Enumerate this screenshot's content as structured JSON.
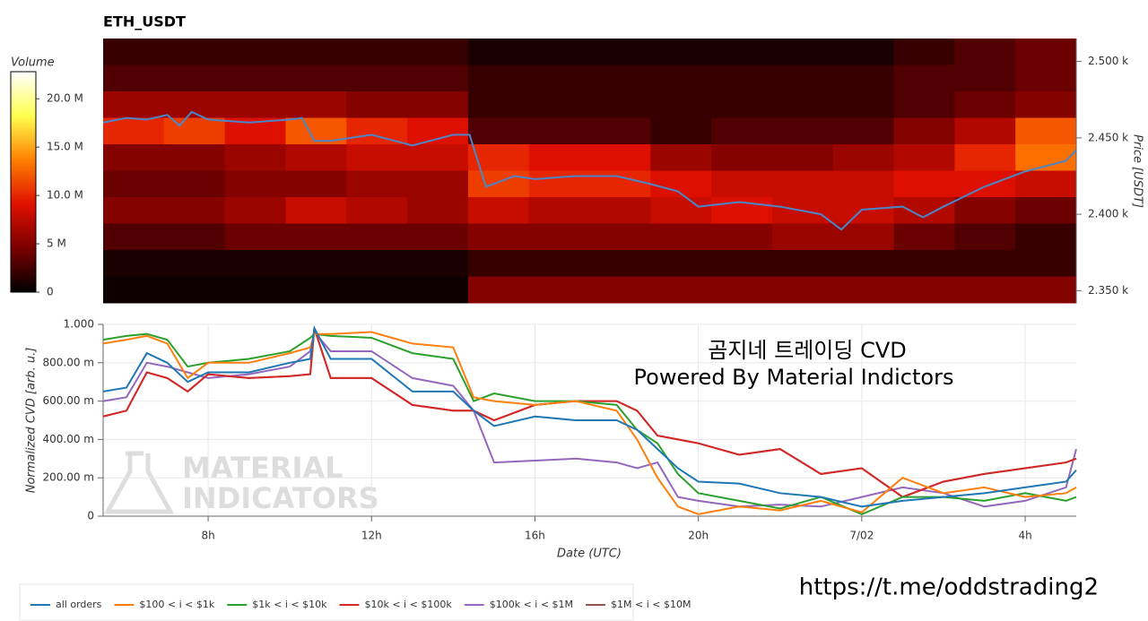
{
  "chart_data": [
    {
      "type": "heatmap",
      "title": "ETH_USDT",
      "colorbar_label": "Volume",
      "y_label": "Price [USDT]",
      "xlim": [
        5.43,
        29.25
      ],
      "ylim": [
        2342,
        2515
      ],
      "yticks": [
        {
          "value": 2350,
          "label": "2.350 k"
        },
        {
          "value": 2400,
          "label": "2.400 k"
        },
        {
          "value": 2450,
          "label": "2.450 k"
        },
        {
          "value": 2500,
          "label": "2.500 k"
        }
      ],
      "zlim": [
        0,
        22800000
      ],
      "zticks": [
        0,
        {
          "value": 5000000,
          "label": "5 M"
        },
        {
          "value": 10000000,
          "label": "10.0 M"
        },
        {
          "value": 15000000,
          "label": "15.0 M"
        },
        {
          "value": 20000000,
          "label": "20.0 M"
        }
      ],
      "colorscale": [
        "#000000",
        "#7a0000",
        "#e01000",
        "#ff8000",
        "#ffff50",
        "#ffffff"
      ],
      "z": [
        [
          2000000.0,
          2000000.0,
          2000000.0,
          2000000.0,
          2000000.0,
          2000000.0,
          1000000.0,
          1000000.0,
          1000000.0,
          1000000.0,
          1000000.0,
          1000000.0,
          1000000.0,
          2000000.0,
          3000000.0,
          4000000.0
        ],
        [
          3000000.0,
          3000000.0,
          3000000.0,
          3000000.0,
          3000000.0,
          3000000.0,
          2000000.0,
          2000000.0,
          2000000.0,
          2000000.0,
          2000000.0,
          2000000.0,
          2000000.0,
          3000000.0,
          3000000.0,
          4000000.0
        ],
        [
          6000000.0,
          6000000.0,
          6000000.0,
          6000000.0,
          5000000.0,
          5000000.0,
          2000000.0,
          2000000.0,
          2000000.0,
          2000000.0,
          2000000.0,
          2000000.0,
          2000000.0,
          3000000.0,
          4000000.0,
          5000000.0
        ],
        [
          10000000.0,
          11000000.0,
          9000000.0,
          12000000.0,
          10000000.0,
          9000000.0,
          3000000.0,
          3000000.0,
          3000000.0,
          2000000.0,
          3000000.0,
          3000000.0,
          3000000.0,
          5000000.0,
          7000000.0,
          12000000.0
        ],
        [
          5000000.0,
          5000000.0,
          6000000.0,
          7000000.0,
          8000000.0,
          8000000.0,
          10000000.0,
          9000000.0,
          9000000.0,
          6000000.0,
          5000000.0,
          5000000.0,
          6000000.0,
          7000000.0,
          10000000.0,
          13000000.0
        ],
        [
          4000000.0,
          4000000.0,
          5000000.0,
          5000000.0,
          6000000.0,
          6000000.0,
          11000000.0,
          10000000.0,
          10000000.0,
          9000000.0,
          8000000.0,
          8000000.0,
          8000000.0,
          9000000.0,
          9000000.0,
          8000000.0
        ],
        [
          5000000.0,
          5000000.0,
          6000000.0,
          8000000.0,
          7000000.0,
          6000000.0,
          8000000.0,
          7000000.0,
          7000000.0,
          8000000.0,
          9000000.0,
          8000000.0,
          8000000.0,
          7000000.0,
          5000000.0,
          4000000.0
        ],
        [
          3000000.0,
          3000000.0,
          4000000.0,
          4000000.0,
          4000000.0,
          4000000.0,
          5000000.0,
          5000000.0,
          5000000.0,
          5000000.0,
          5000000.0,
          6000000.0,
          6000000.0,
          4000000.0,
          3000000.0,
          2000000.0
        ],
        [
          1000000.0,
          1000000.0,
          1000000.0,
          1000000.0,
          1000000.0,
          1000000.0,
          2000000.0,
          2000000.0,
          2000000.0,
          2000000.0,
          2000000.0,
          2000000.0,
          2000000.0,
          2000000.0,
          2000000.0,
          2000000.0
        ],
        [
          500000.0,
          500000.0,
          500000.0,
          500000.0,
          500000.0,
          500000.0,
          5000000.0,
          5000000.0,
          5000000.0,
          5000000.0,
          5000000.0,
          5000000.0,
          5000000.0,
          5000000.0,
          5000000.0,
          5000000.0
        ]
      ],
      "line_color": "#4a86c8",
      "x": [
        5.43,
        6,
        6.5,
        7,
        7.3,
        7.6,
        8,
        9,
        10,
        10.3,
        10.6,
        11,
        12,
        13,
        14,
        14.4,
        14.8,
        15.5,
        16,
        17,
        18,
        18.8,
        19.5,
        20,
        21,
        22,
        23,
        23.5,
        24,
        25,
        25.5,
        26,
        27,
        28,
        29,
        29.25
      ],
      "price": [
        2460,
        2463,
        2462,
        2465,
        2458,
        2467,
        2462,
        2460,
        2462,
        2463,
        2448,
        2448,
        2452,
        2445,
        2452,
        2452,
        2418,
        2425,
        2423,
        2425,
        2425,
        2420,
        2415,
        2405,
        2408,
        2405,
        2400,
        2390,
        2403,
        2405,
        2398,
        2405,
        2418,
        2428,
        2435,
        2442
      ]
    },
    {
      "type": "line",
      "x_label": "Date (UTC)",
      "y_label": "Normalized CVD [arb. u.]",
      "annotations": [
        "곰지네 트레이딩 CVD",
        "Powered By Material Indictors"
      ],
      "watermark": [
        "MATERIAL",
        "INDICATORS"
      ],
      "xlim": [
        5.43,
        29.25
      ],
      "ylim": [
        0,
        1
      ],
      "xticks": [
        {
          "value": 8,
          "label": "8h"
        },
        {
          "value": 12,
          "label": "12h"
        },
        {
          "value": 16,
          "label": "16h"
        },
        {
          "value": 20,
          "label": "20h"
        },
        {
          "value": 24,
          "label": "7/02"
        },
        {
          "value": 28,
          "label": "4h"
        }
      ],
      "yticks": [
        0,
        {
          "value": 0.2,
          "label": "200.00 m"
        },
        {
          "value": 0.4,
          "label": "400.00 m"
        },
        {
          "value": 0.6,
          "label": "600.00 m"
        },
        {
          "value": 0.8,
          "label": "800.00 m"
        },
        {
          "value": 1,
          "label": "1.000"
        }
      ],
      "grid": true,
      "legend": "bottom-left",
      "x": [
        5.43,
        6,
        6.5,
        7,
        7.5,
        8,
        9,
        10,
        10.5,
        10.6,
        11,
        12,
        13,
        14,
        14.5,
        15,
        16,
        17,
        18,
        18.5,
        19,
        19.5,
        20,
        21,
        22,
        23,
        24,
        25,
        26,
        27,
        28,
        29,
        29.25
      ],
      "series": [
        {
          "name": "all orders",
          "color": "#1f77b4",
          "values": [
            0.65,
            0.67,
            0.85,
            0.8,
            0.7,
            0.75,
            0.75,
            0.8,
            0.82,
            0.98,
            0.82,
            0.82,
            0.65,
            0.65,
            0.55,
            0.47,
            0.52,
            0.5,
            0.5,
            0.45,
            0.35,
            0.25,
            0.18,
            0.17,
            0.12,
            0.1,
            0.05,
            0.08,
            0.1,
            0.12,
            0.15,
            0.18,
            0.24
          ]
        },
        {
          "name": "$100 < i < $1k",
          "color": "#ff7f0e",
          "values": [
            0.9,
            0.92,
            0.94,
            0.9,
            0.72,
            0.8,
            0.8,
            0.85,
            0.88,
            0.95,
            0.95,
            0.96,
            0.9,
            0.88,
            0.62,
            0.6,
            0.58,
            0.6,
            0.55,
            0.4,
            0.2,
            0.05,
            0.01,
            0.05,
            0.03,
            0.08,
            0.02,
            0.2,
            0.12,
            0.15,
            0.1,
            0.12,
            0.15
          ]
        },
        {
          "name": "$1k < i < $10k",
          "color": "#2ca02c",
          "values": [
            0.92,
            0.94,
            0.95,
            0.92,
            0.78,
            0.8,
            0.82,
            0.86,
            0.93,
            0.95,
            0.94,
            0.93,
            0.85,
            0.82,
            0.6,
            0.64,
            0.6,
            0.6,
            0.58,
            0.45,
            0.38,
            0.22,
            0.12,
            0.08,
            0.04,
            0.1,
            0.01,
            0.1,
            0.1,
            0.08,
            0.12,
            0.08,
            0.1
          ]
        },
        {
          "name": "$10k < i < $100k",
          "color": "#d62728",
          "values": [
            0.52,
            0.55,
            0.75,
            0.72,
            0.65,
            0.74,
            0.72,
            0.73,
            0.74,
            0.98,
            0.72,
            0.72,
            0.58,
            0.55,
            0.55,
            0.5,
            0.58,
            0.6,
            0.6,
            0.55,
            0.42,
            0.4,
            0.38,
            0.32,
            0.35,
            0.22,
            0.25,
            0.1,
            0.18,
            0.22,
            0.25,
            0.28,
            0.3
          ]
        },
        {
          "name": "$100k < i < $1M",
          "color": "#9467bd",
          "values": [
            0.6,
            0.62,
            0.8,
            0.78,
            0.75,
            0.72,
            0.74,
            0.78,
            0.86,
            0.96,
            0.86,
            0.86,
            0.72,
            0.68,
            0.55,
            0.28,
            0.29,
            0.3,
            0.28,
            0.25,
            0.28,
            0.1,
            0.08,
            0.05,
            0.06,
            0.05,
            0.1,
            0.15,
            0.12,
            0.05,
            0.08,
            0.15,
            0.35
          ]
        },
        {
          "name": "$1M < i < $10M",
          "color": "#8c564b",
          "values": [
            0.52,
            0.55,
            0.75,
            0.72,
            0.65,
            0.74,
            0.72,
            0.73,
            0.74,
            0.98,
            0.72,
            0.72,
            0.58,
            0.55,
            0.55,
            0.5,
            0.58,
            0.6,
            0.6,
            0.55,
            0.42,
            0.4,
            0.38,
            0.32,
            0.35,
            0.22,
            0.25,
            0.1,
            0.18,
            0.22,
            0.25,
            0.28,
            0.3
          ]
        }
      ]
    }
  ],
  "footer_link": "https://t.me/oddstrading2"
}
